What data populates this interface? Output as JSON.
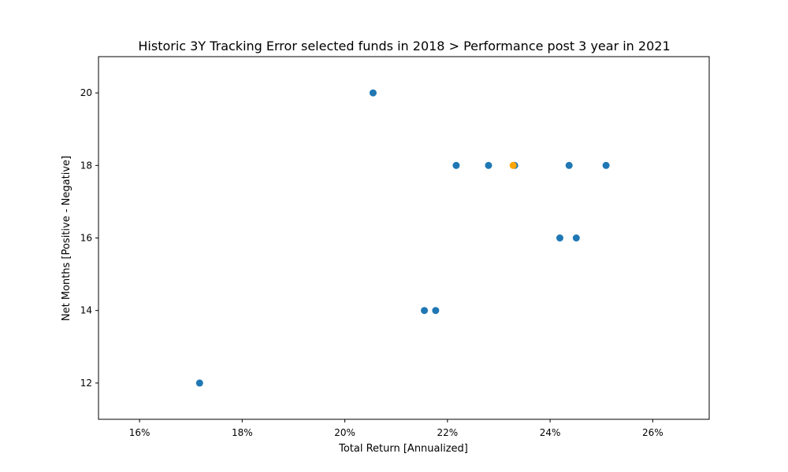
{
  "chart_data": {
    "type": "scatter",
    "title": "Historic 3Y Tracking Error selected funds in 2018 > Performance post 3 year in 2021",
    "xlabel": "Total Return [Annualized]",
    "ylabel": "Net Months [Positive - Negative]",
    "xlim": [
      15.2,
      27.1
    ],
    "ylim": [
      11.0,
      21.0
    ],
    "x_ticks": [
      16,
      18,
      20,
      22,
      24,
      26
    ],
    "x_tick_labels": [
      "16%",
      "18%",
      "20%",
      "22%",
      "24%",
      "26%"
    ],
    "y_ticks": [
      12,
      14,
      16,
      18,
      20
    ],
    "y_tick_labels": [
      "12",
      "14",
      "16",
      "18",
      "20"
    ],
    "grid": false,
    "series": [
      {
        "color": "#1f77b4",
        "points": [
          {
            "x": 17.17,
            "y": 12
          },
          {
            "x": 20.55,
            "y": 20
          },
          {
            "x": 21.55,
            "y": 14
          },
          {
            "x": 21.77,
            "y": 14
          },
          {
            "x": 22.17,
            "y": 18
          },
          {
            "x": 22.8,
            "y": 18
          },
          {
            "x": 23.31,
            "y": 18
          },
          {
            "x": 24.37,
            "y": 18
          },
          {
            "x": 25.09,
            "y": 18
          },
          {
            "x": 24.19,
            "y": 16
          },
          {
            "x": 24.51,
            "y": 16
          }
        ]
      },
      {
        "color": "#ffa500",
        "points": [
          {
            "x": 23.28,
            "y": 18
          }
        ]
      }
    ]
  }
}
